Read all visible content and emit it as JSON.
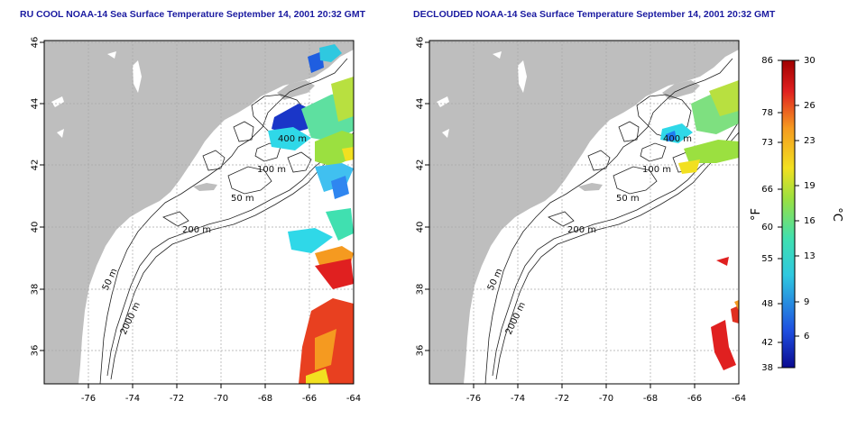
{
  "panels": [
    {
      "title": "RU COOL NOAA-14 Sea Surface Temperature September 14, 2001 20:32 GMT"
    },
    {
      "title": "DECLOUDED NOAA-14 Sea Surface Temperature September 14, 2001 20:32 GMT"
    }
  ],
  "axes": {
    "lon_ticks": [
      "-76",
      "-74",
      "-72",
      "-70",
      "-68",
      "-66",
      "-64"
    ],
    "lat_ticks": [
      "46",
      "44",
      "42",
      "40",
      "38",
      "36"
    ]
  },
  "contour_labels": [
    "400 m",
    "100 m",
    "50 m",
    "200 m",
    "50 m",
    "2000 m"
  ],
  "colorbar": {
    "fahrenheit_label": "°F",
    "celsius_label": "°C",
    "fahrenheit_ticks": [
      "86",
      "78",
      "73",
      "66",
      "60",
      "55",
      "48",
      "42",
      "38"
    ],
    "celsius_ticks": [
      "30",
      "26",
      "23",
      "19",
      "16",
      "13",
      "9",
      "6"
    ]
  },
  "colors": {
    "land": "#bebebe",
    "title": "#1a1aa0",
    "colorbar_stops": [
      "#0a0a90",
      "#1f4fe0",
      "#2fc8e0",
      "#40e0b0",
      "#9be040",
      "#f2e020",
      "#f59a20",
      "#e02020",
      "#a00000"
    ]
  }
}
